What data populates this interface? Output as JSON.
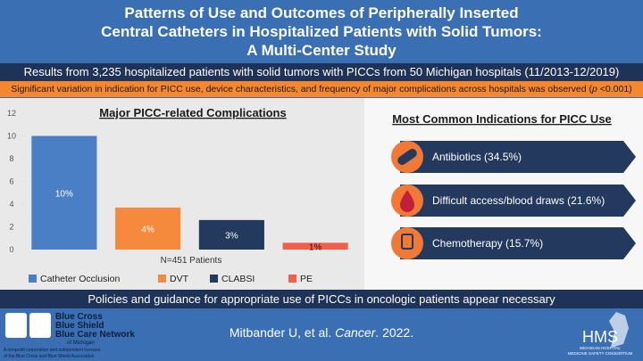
{
  "header": {
    "title_lines": [
      "Patterns of Use and Outcomes of Peripherally Inserted",
      "Central Catheters in Hospitalized Patients with Solid Tumors:",
      "A Multi-Center Study"
    ],
    "results": "Results from 3,235 hospitalized patients with solid tumors with PICCs from 50 Michigan hospitals (11/2013-12/2019)",
    "finding_parts": [
      "Significant variation in indication for PICC use, device characteristics, and frequency of major complications across hospitals was observed (",
      "p",
      " <0.001)"
    ]
  },
  "chart_data": {
    "type": "bar",
    "title": "Major PICC-related Complications",
    "x_label": "N=451 Patients",
    "categories": [
      "Catheter Occlusion",
      "DVT",
      "CLABSI",
      "PE"
    ],
    "values": [
      10,
      3.7,
      2.6,
      0.6
    ],
    "value_labels": [
      "10%",
      "4%",
      "3%",
      "1%"
    ],
    "colors": [
      "#4a7fc6",
      "#f58a3c",
      "#23395d",
      "#f0604a"
    ],
    "ylim": [
      0,
      12
    ],
    "yticks": [
      0,
      2,
      4,
      6,
      8,
      10,
      12
    ],
    "legend": "bottom"
  },
  "indications": {
    "title": "Most Common Indications for PICC Use",
    "items": [
      "Antibiotics (34.5%)",
      "Difficult access/blood draws (21.6%)",
      "Chemotherapy (15.7%)"
    ]
  },
  "conclusion": "Policies and guidance for appropriate use of PICCs in oncologic patients appear necessary",
  "footer": {
    "bcbs_lines": [
      "Blue Cross",
      "Blue Shield",
      "Blue Care Network"
    ],
    "bcbs_sub": "of Michigan",
    "licensee_lines": [
      "A nonprofit corporation and independent licensee",
      "of the Blue Cross and Blue Shield Association"
    ],
    "citation_parts": [
      "Mitbander U, et al. ",
      "Cancer",
      ". 2022."
    ],
    "hms": "HMS",
    "hms_sub_lines": [
      "MICHIGAN HOSPITAL",
      "MEDICINE SAFETY CONSORTIUM"
    ]
  }
}
